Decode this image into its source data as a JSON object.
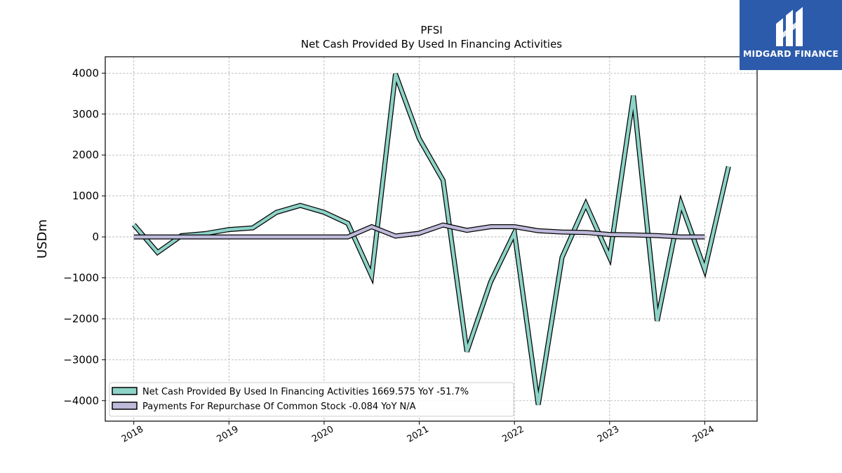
{
  "chart_data": {
    "type": "line",
    "title": "PFSI",
    "subtitle": "Net Cash Provided By Used In Financing Activities",
    "ylabel": "USDm",
    "xlabel": "",
    "xlim": [
      2017.7,
      2024.55
    ],
    "ylim": [
      -4500,
      4400
    ],
    "x_ticks": [
      2018,
      2019,
      2020,
      2021,
      2022,
      2023,
      2024
    ],
    "y_ticks": [
      -4000,
      -3000,
      -2000,
      -1000,
      0,
      1000,
      2000,
      3000,
      4000
    ],
    "x_tick_labels": [
      "2018",
      "2019",
      "2020",
      "2021",
      "2022",
      "2023",
      "2024"
    ],
    "y_tick_labels": [
      "−4000",
      "−3000",
      "−2000",
      "−1000",
      "0",
      "1000",
      "2000",
      "3000",
      "4000"
    ],
    "grid": true,
    "legend_position": "lower-left",
    "series": [
      {
        "name": "Net Cash Provided By Used In Financing Activities",
        "legend_label": "Net Cash Provided By Used In Financing Activities  1669.575 YoY -51.7%",
        "color": "#8dd3c7",
        "x": [
          2018.0,
          2018.25,
          2018.5,
          2018.75,
          2019.0,
          2019.25,
          2019.5,
          2019.75,
          2020.0,
          2020.25,
          2020.5,
          2020.75,
          2021.0,
          2021.25,
          2021.5,
          2021.75,
          2022.0,
          2022.25,
          2022.5,
          2022.75,
          2023.0,
          2023.25,
          2023.5,
          2023.75,
          2024.0,
          2024.25
        ],
        "values": [
          300,
          -380,
          30,
          80,
          180,
          220,
          600,
          770,
          600,
          330,
          -950,
          3980,
          2400,
          1380,
          -2800,
          -1100,
          100,
          -4100,
          -500,
          800,
          -500,
          3450,
          -2050,
          820,
          -800,
          1720
        ]
      },
      {
        "name": "Payments For Repurchase Of Common Stock",
        "legend_label": "Payments For Repurchase Of Common Stock  -0.084 YoY N/A",
        "color": "#bebada",
        "x": [
          2018.0,
          2018.25,
          2018.5,
          2018.75,
          2019.0,
          2019.25,
          2019.5,
          2019.75,
          2020.0,
          2020.25,
          2020.5,
          2020.75,
          2021.0,
          2021.25,
          2021.5,
          2021.75,
          2022.0,
          2022.25,
          2022.5,
          2022.75,
          2023.0,
          2023.25,
          2023.5,
          2023.75,
          2024.0
        ],
        "values": [
          0,
          0,
          0,
          0,
          0,
          0,
          0,
          0,
          0,
          0,
          250,
          20,
          90,
          290,
          160,
          250,
          250,
          150,
          120,
          110,
          60,
          50,
          30,
          0,
          0
        ]
      }
    ]
  },
  "logo": {
    "text": "MIDGARD FINANCE",
    "color": "#2d5bab"
  }
}
